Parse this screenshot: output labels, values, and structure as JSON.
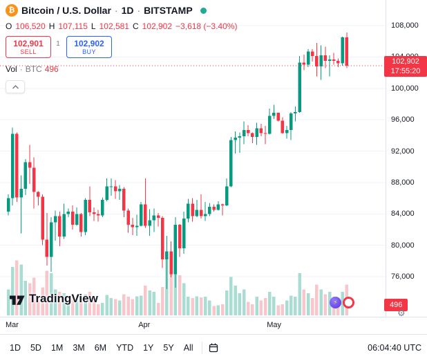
{
  "colors": {
    "up": "#089981",
    "down": "#F23645",
    "vol_up": "#A9DCD2",
    "vol_down": "#F8C7CC",
    "accent_blue": "#2962FF",
    "teal_dot": "#22AB94",
    "bitcoin_orange": "#F7931A",
    "text": "#131722",
    "muted": "#787B86",
    "grid": "#F0F3FA",
    "border": "#E0E3EB"
  },
  "icons": {
    "symbol": "bitcoin-icon",
    "status": "market-status-icon",
    "collapse": "chevron-up-icon",
    "settings": "gear-icon",
    "goto_date": "calendar-icon",
    "logo": "tradingview-logo",
    "sticker_left": "lightning-emoji-icon",
    "sticker_right": "lifebuoy-emoji-icon"
  },
  "header": {
    "symbol": "Bitcoin / U.S. Dollar",
    "sep": "·",
    "interval": "1D",
    "exchange": "BITSTAMP",
    "ohlc": {
      "open_label": "O",
      "open": "106,520",
      "high_label": "H",
      "high": "107,115",
      "low_label": "L",
      "low": "102,581",
      "close_label": "C",
      "close": "102,902",
      "change": "−3,618 (−3.40%)"
    },
    "sell_button": {
      "price": "102,901",
      "label": "SELL"
    },
    "spread": "1",
    "buy_button": {
      "price": "102,902",
      "label": "BUY"
    },
    "volume_row": {
      "label": "Vol",
      "sep": "·",
      "unit": "BTC",
      "value": "496"
    }
  },
  "chart": {
    "watermark": "TradingView",
    "price_label": {
      "price": "102,902",
      "countdown": "17:55:20"
    },
    "volume_label": "496",
    "y_axis": [
      "108,000",
      "104,000",
      "100,000",
      "96,000",
      "92,000",
      "88,000",
      "84,000",
      "80,000",
      "76,000"
    ]
  },
  "toolbar": {
    "ranges": [
      "1D",
      "5D",
      "1M",
      "3M",
      "6M",
      "YTD",
      "1Y",
      "5Y",
      "All"
    ],
    "clock": "06:04:40 UTC"
  },
  "chart_data": {
    "type": "candlestick_with_volume",
    "symbol": "BTC/USD",
    "interval": "1D",
    "ylim": [
      74000,
      108800
    ],
    "y_ticks": [
      108000,
      104000,
      100000,
      96000,
      92000,
      88000,
      84000,
      80000,
      76000
    ],
    "x_axis_ticks": [
      {
        "label": "Mar",
        "candle_index": 0
      },
      {
        "label": "Apr",
        "candle_index": 31
      },
      {
        "label": "May",
        "candle_index": 61
      }
    ],
    "last_close": 102902,
    "candle_fields": [
      "open",
      "high",
      "low",
      "close",
      "volume"
    ],
    "candles": [
      [
        84300,
        86500,
        83800,
        86000,
        420
      ],
      [
        86000,
        95000,
        85100,
        94200,
        780
      ],
      [
        94200,
        94400,
        85500,
        86100,
        890
      ],
      [
        86100,
        88900,
        81500,
        87200,
        820
      ],
      [
        87200,
        91000,
        86400,
        90600,
        560
      ],
      [
        90600,
        92800,
        87800,
        89900,
        520
      ],
      [
        89900,
        91200,
        84700,
        86800,
        610
      ],
      [
        86800,
        86900,
        85100,
        86200,
        300
      ],
      [
        86200,
        86500,
        80000,
        80700,
        450
      ],
      [
        80700,
        84100,
        77400,
        78500,
        720
      ],
      [
        78500,
        83600,
        76600,
        82900,
        680
      ],
      [
        82900,
        84400,
        80600,
        83700,
        420
      ],
      [
        83700,
        84300,
        79900,
        81100,
        380
      ],
      [
        81100,
        85300,
        80800,
        84000,
        360
      ],
      [
        84000,
        84700,
        83600,
        84300,
        220
      ],
      [
        84300,
        85100,
        82000,
        82600,
        280
      ],
      [
        82600,
        84800,
        82500,
        84000,
        260
      ],
      [
        84000,
        84100,
        81100,
        81700,
        300
      ],
      [
        81700,
        86000,
        81300,
        85800,
        340
      ],
      [
        85800,
        87500,
        83700,
        84200,
        380
      ],
      [
        84200,
        84800,
        83100,
        84000,
        260
      ],
      [
        84000,
        84500,
        83000,
        83800,
        180
      ],
      [
        83800,
        86100,
        83600,
        85800,
        200
      ],
      [
        85800,
        88500,
        85600,
        87500,
        330
      ],
      [
        87500,
        88500,
        86300,
        87520,
        280
      ],
      [
        87520,
        88300,
        85900,
        86900,
        260
      ],
      [
        86900,
        87700,
        85800,
        87200,
        240
      ],
      [
        87200,
        87400,
        83600,
        84400,
        340
      ],
      [
        84400,
        84700,
        81600,
        82600,
        300
      ],
      [
        82600,
        83500,
        81300,
        82300,
        260
      ],
      [
        82300,
        83900,
        81200,
        82500,
        310
      ],
      [
        82500,
        85500,
        82400,
        85200,
        320
      ],
      [
        85200,
        88500,
        82200,
        82500,
        480
      ],
      [
        82500,
        84600,
        81200,
        83200,
        400
      ],
      [
        83200,
        84700,
        81700,
        83800,
        380
      ],
      [
        83800,
        84100,
        82400,
        83500,
        200
      ],
      [
        83500,
        83700,
        77100,
        78200,
        460
      ],
      [
        78200,
        81200,
        74400,
        79200,
        950
      ],
      [
        79200,
        80500,
        75900,
        76300,
        720
      ],
      [
        76300,
        83600,
        74600,
        82600,
        880
      ],
      [
        82600,
        82700,
        78500,
        79600,
        650
      ],
      [
        79600,
        84300,
        78900,
        83400,
        520
      ],
      [
        83400,
        85900,
        82900,
        85300,
        300
      ],
      [
        85300,
        86000,
        83000,
        83700,
        280
      ],
      [
        83700,
        85800,
        83600,
        84500,
        310
      ],
      [
        84500,
        86500,
        83400,
        83700,
        290
      ],
      [
        83700,
        85500,
        83100,
        84000,
        300
      ],
      [
        84000,
        85400,
        83700,
        84900,
        240
      ],
      [
        84900,
        85200,
        84300,
        84500,
        150
      ],
      [
        84500,
        85600,
        84400,
        85200,
        160
      ],
      [
        85200,
        85300,
        83800,
        85100,
        180
      ],
      [
        85100,
        88500,
        85000,
        87500,
        400
      ],
      [
        87500,
        93800,
        87400,
        93400,
        620
      ],
      [
        93400,
        94500,
        91700,
        93700,
        480
      ],
      [
        93700,
        94400,
        91800,
        93900,
        360
      ],
      [
        93900,
        95800,
        92900,
        94700,
        420
      ],
      [
        94700,
        95300,
        93900,
        94300,
        220
      ],
      [
        94300,
        94400,
        93000,
        93800,
        180
      ],
      [
        93800,
        95600,
        92800,
        94900,
        300
      ],
      [
        94900,
        95500,
        93900,
        94300,
        240
      ],
      [
        94300,
        95200,
        92900,
        94200,
        280
      ],
      [
        94200,
        97400,
        94100,
        96500,
        380
      ],
      [
        96500,
        97900,
        96100,
        96900,
        300
      ],
      [
        96900,
        96900,
        95800,
        95900,
        160
      ],
      [
        95900,
        96300,
        94200,
        94300,
        180
      ],
      [
        94300,
        95200,
        93600,
        94700,
        240
      ],
      [
        94700,
        97000,
        93400,
        96800,
        320
      ],
      [
        96800,
        97700,
        95800,
        97000,
        300
      ],
      [
        97000,
        104100,
        96900,
        103300,
        680
      ],
      [
        103300,
        104300,
        102300,
        103000,
        420
      ],
      [
        103000,
        105000,
        102700,
        104700,
        360
      ],
      [
        104700,
        105000,
        103400,
        104100,
        280
      ],
      [
        104100,
        105800,
        101500,
        102800,
        500
      ],
      [
        102800,
        105500,
        101100,
        104200,
        420
      ],
      [
        104200,
        105300,
        102600,
        103500,
        340
      ],
      [
        103500,
        104200,
        101500,
        103700,
        380
      ],
      [
        103700,
        104500,
        103000,
        103500,
        300
      ],
      [
        103500,
        103800,
        102700,
        103200,
        200
      ],
      [
        103200,
        106600,
        102900,
        106500,
        380
      ],
      [
        106520,
        107115,
        102581,
        102902,
        496
      ]
    ]
  }
}
